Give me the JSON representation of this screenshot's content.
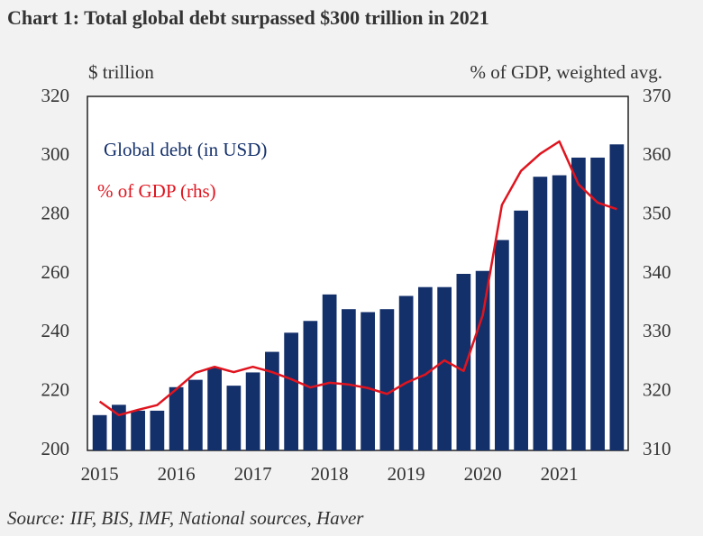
{
  "chart_data": {
    "type": "bar",
    "title": "Chart 1: Total global debt surpassed $300 trillion in 2021",
    "ylabel": "$ trillion",
    "y2label": "% of GDP, weighted avg.",
    "source": "Source: IIF, BIS, IMF, National sources, Haver",
    "categories": [
      "2015",
      null,
      null,
      null,
      "2016",
      null,
      null,
      null,
      "2017",
      null,
      null,
      null,
      "2018",
      null,
      null,
      null,
      "2019",
      null,
      null,
      null,
      "2020",
      null,
      null,
      null,
      "2021",
      null,
      null,
      null
    ],
    "series": [
      {
        "name": "Global debt (in USD)",
        "color": "#14306b",
        "type": "bar",
        "values": [
          212,
          215.5,
          213.5,
          213.5,
          221.5,
          224,
          228,
          222,
          226.5,
          233.5,
          240,
          244,
          253,
          248,
          247,
          248,
          252.5,
          255.5,
          255.5,
          260,
          261,
          271.5,
          281.5,
          293,
          293.5,
          299.5,
          299.5,
          304
        ]
      },
      {
        "name": "% of GDP (rhs)",
        "color": "#e0141e",
        "type": "line",
        "axis": "y2",
        "values": [
          318.3,
          316,
          316.9,
          317.7,
          320.4,
          323.2,
          324.2,
          323.3,
          324.2,
          323.3,
          322.1,
          320.7,
          321.5,
          321.2,
          320.6,
          319.6,
          321.5,
          322.9,
          325.3,
          323.5,
          333,
          351.7,
          357.5,
          360.4,
          362.5,
          355.2,
          352.1,
          351
        ]
      }
    ],
    "ylim": [
      200,
      320
    ],
    "yticks": [
      200,
      220,
      240,
      260,
      280,
      300,
      320
    ],
    "y2lim": [
      310,
      370
    ],
    "y2ticks": [
      310,
      320,
      330,
      340,
      350,
      360,
      370
    ],
    "grid": false
  }
}
